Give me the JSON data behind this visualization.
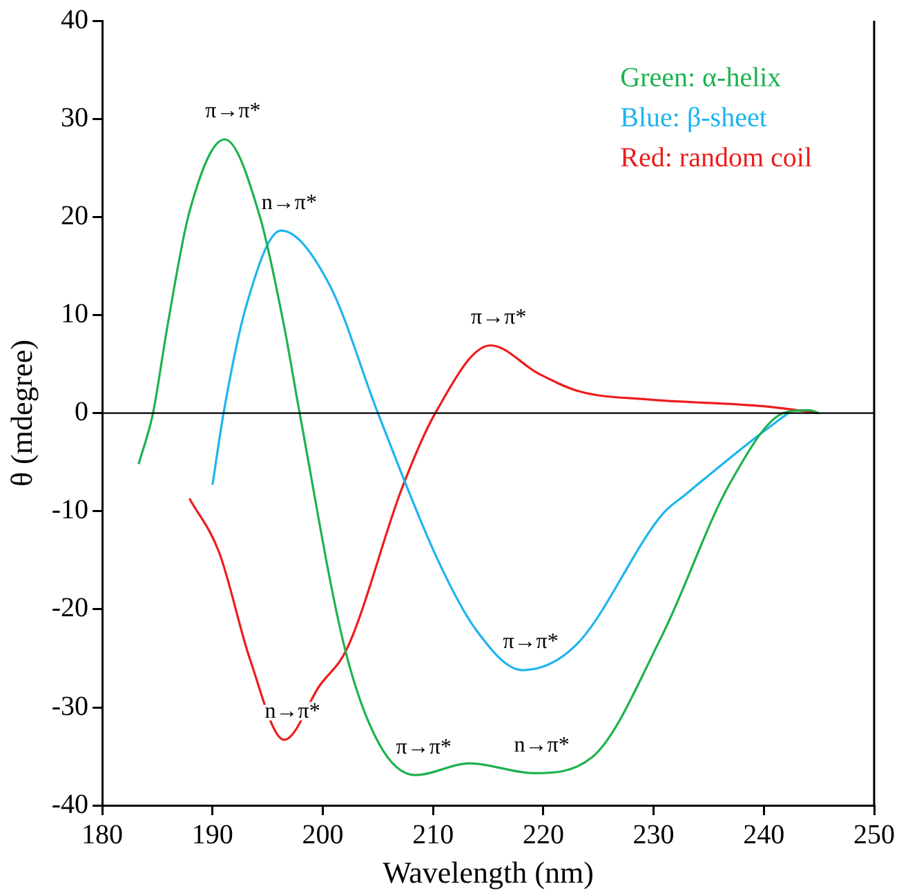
{
  "chart_data": {
    "type": "line",
    "xlabel": "Wavelength (nm)",
    "ylabel": "θ (mdegree)",
    "xlim": [
      180,
      250
    ],
    "xticks": [
      180,
      190,
      200,
      210,
      220,
      230,
      240,
      250
    ],
    "ylim": [
      -40,
      40
    ],
    "yticks": [
      -40,
      -30,
      -20,
      -10,
      0,
      10,
      20,
      30,
      40
    ],
    "grid": false,
    "legend": "top right",
    "marker": "none",
    "ref_lines": [
      {
        "axis": "y",
        "value": 0,
        "color": "#000000"
      }
    ],
    "series": [
      {
        "name": "Green: α-helix",
        "color": "#1db24f",
        "x": [
          183.3,
          184.6,
          185.9,
          187.9,
          191.1,
          194.3,
          196.5,
          197.9,
          202.0,
          205.1,
          208.4,
          213.3,
          219.1,
          224.4,
          230.8,
          236.9,
          242.0,
          244.1,
          245.0
        ],
        "values": [
          -5.2,
          0,
          8.8,
          20.5,
          27.9,
          20,
          8.8,
          0,
          -24.0,
          -33.7,
          -36.9,
          -35.7,
          -36.7,
          -35.1,
          -22.6,
          -7.2,
          0.1,
          0.3,
          0
        ]
      },
      {
        "name": "Blue: β-sheet",
        "color": "#1db4ef",
        "x": [
          190.0,
          191.0,
          193.0,
          196.2,
          200.6,
          205.0,
          210.4,
          213.9,
          218.1,
          223.0,
          230.8,
          233.0,
          238.9,
          242.2
        ],
        "values": [
          -7.3,
          0,
          10.7,
          18.6,
          13.1,
          0,
          -14.9,
          -22.1,
          -26.2,
          -23.6,
          -10.3,
          -8.2,
          -2.8,
          0
        ]
      },
      {
        "name": "Red: random coil",
        "color": "#ee1c1c",
        "x": [
          187.9,
          190.6,
          193.4,
          196.5,
          199.7,
          202.2,
          207.2,
          210.2,
          215.2,
          219.6,
          223.3,
          229.3,
          240.0,
          245.0
        ],
        "values": [
          -8.7,
          -14.2,
          -25.1,
          -33.3,
          -27.8,
          -24.0,
          -7.6,
          0,
          6.9,
          4.0,
          2.2,
          1.4,
          0.7,
          0
        ]
      }
    ],
    "annotations": [
      {
        "text": "π→π*",
        "x": 191.1,
        "y": 27.9
      },
      {
        "text": "n→π*",
        "x": 196.2,
        "y": 18.6
      },
      {
        "text": "π→π*",
        "x": 215.2,
        "y": 6.9
      },
      {
        "text": "π→π*",
        "x": 218.1,
        "y": -26.2
      },
      {
        "text": "n→π*",
        "x": 196.5,
        "y": -33.3
      },
      {
        "text": "π→π*",
        "x": 208.4,
        "y": -36.9
      },
      {
        "text": "n→π*",
        "x": 219.1,
        "y": -36.7
      }
    ]
  }
}
